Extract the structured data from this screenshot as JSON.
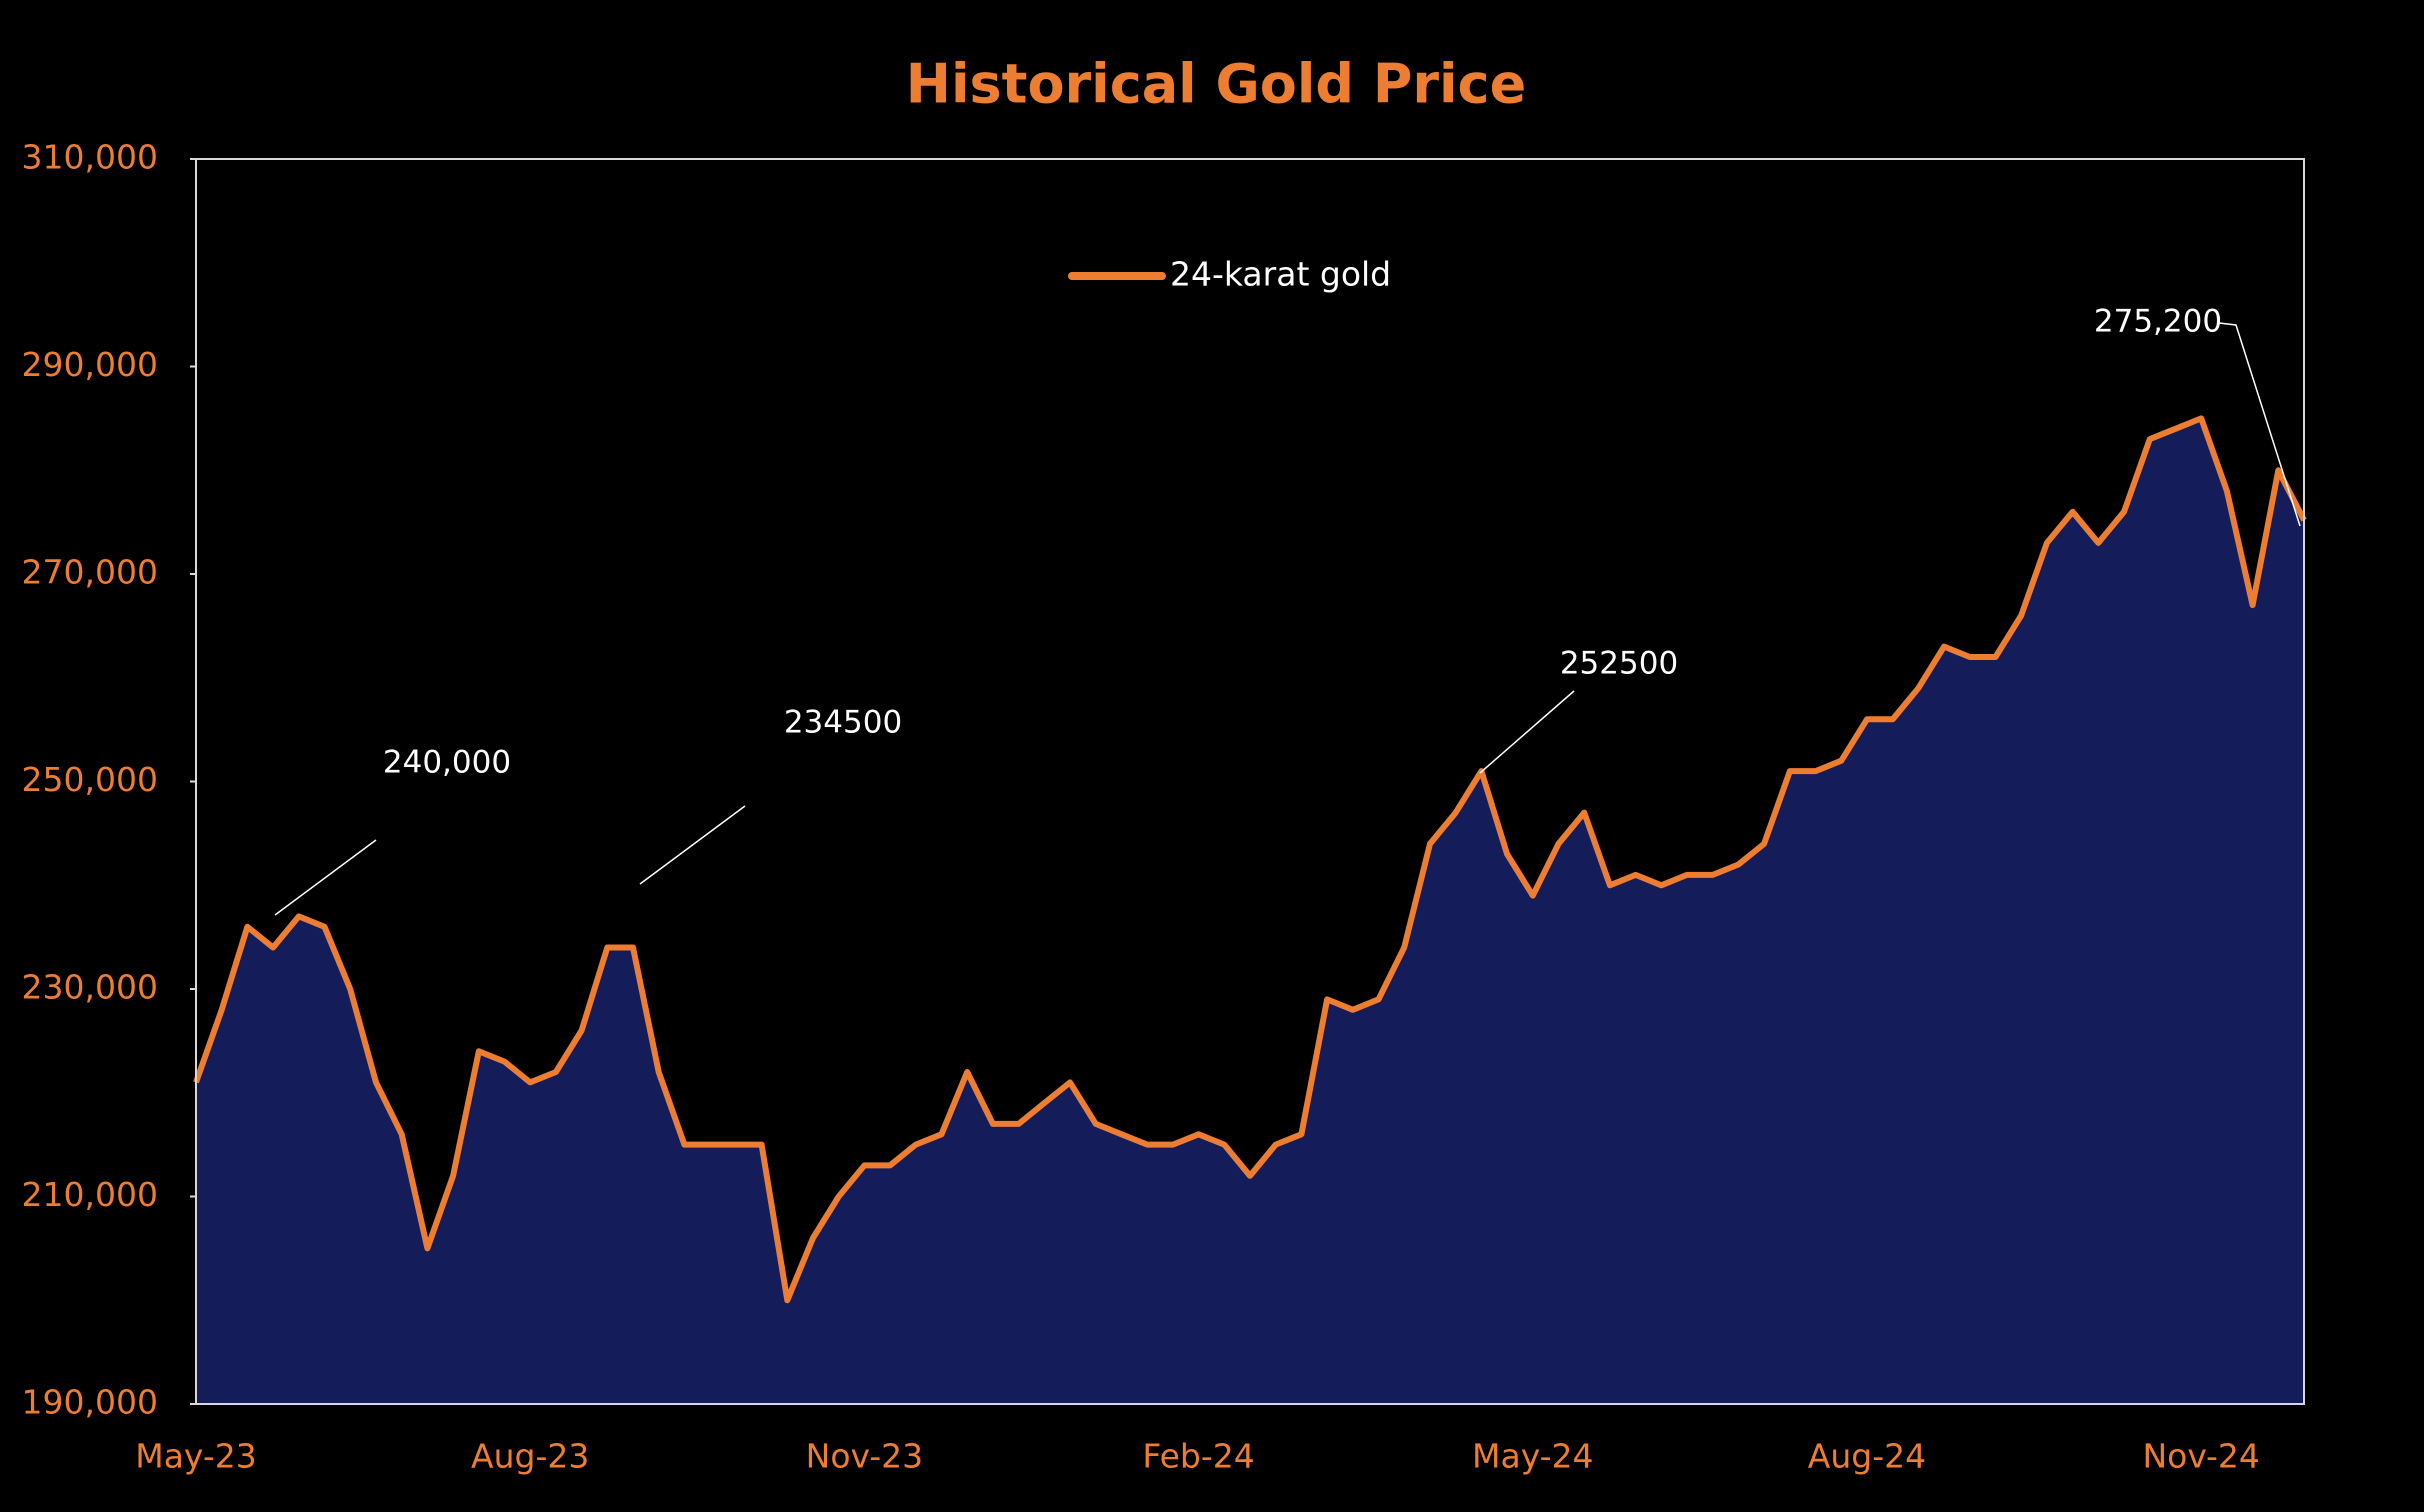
{
  "chart_data": {
    "type": "area",
    "title": "Historical Gold Price",
    "series": [
      {
        "name": "24-karat gold",
        "color": "#ed7d31",
        "fill": "#141c5a",
        "values": [
          221000,
          228000,
          236000,
          234000,
          237000,
          236000,
          230000,
          221000,
          216000,
          205000,
          212000,
          224000,
          223000,
          221000,
          222000,
          226000,
          234000,
          234000,
          222000,
          215000,
          215000,
          215000,
          215000,
          200000,
          206000,
          210000,
          213000,
          213000,
          215000,
          216000,
          222000,
          217000,
          217000,
          219000,
          221000,
          217000,
          216000,
          215000,
          215000,
          216000,
          215000,
          212000,
          215000,
          216000,
          229000,
          228000,
          229000,
          234000,
          244000,
          247000,
          251000,
          243000,
          239000,
          244000,
          247000,
          240000,
          241000,
          240000,
          241000,
          241000,
          242000,
          244000,
          251000,
          251000,
          252000,
          256000,
          256000,
          259000,
          263000,
          262000,
          262000,
          266000,
          273000,
          276000,
          273000,
          276000,
          283000,
          284000,
          285000,
          278000,
          267000,
          280000,
          275200
        ]
      }
    ],
    "categories": [
      "May-23",
      null,
      null,
      null,
      null,
      null,
      null,
      null,
      null,
      null,
      null,
      null,
      null,
      "Aug-23",
      null,
      null,
      null,
      null,
      null,
      null,
      null,
      null,
      null,
      null,
      null,
      null,
      "Nov-23",
      null,
      null,
      null,
      null,
      null,
      null,
      null,
      null,
      null,
      null,
      null,
      null,
      "Feb-24",
      null,
      null,
      null,
      null,
      null,
      null,
      null,
      null,
      null,
      null,
      null,
      null,
      "May-24",
      null,
      null,
      null,
      null,
      null,
      null,
      null,
      null,
      null,
      null,
      null,
      null,
      "Aug-24",
      null,
      null,
      null,
      null,
      null,
      null,
      null,
      null,
      null,
      null,
      null,
      null,
      "Nov-24",
      null,
      null,
      null,
      null
    ],
    "ylim": [
      190000,
      310000
    ],
    "yticks": [
      {
        "value": 190000,
        "label": "190,000"
      },
      {
        "value": 210000,
        "label": "210,000"
      },
      {
        "value": 230000,
        "label": "230,000"
      },
      {
        "value": 250000,
        "label": "250,000"
      },
      {
        "value": 270000,
        "label": "270,000"
      },
      {
        "value": 290000,
        "label": "290,000"
      },
      {
        "value": 310000,
        "label": "310,000"
      }
    ],
    "annotations": [
      "240,000",
      "234500",
      "252500",
      "275,200"
    ],
    "legend": "top"
  }
}
